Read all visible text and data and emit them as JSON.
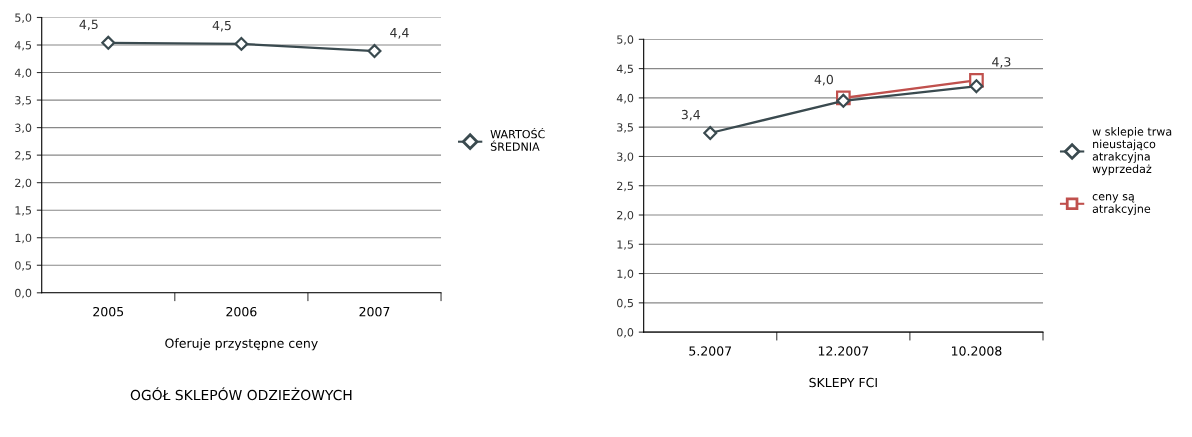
{
  "chart_data": [
    {
      "type": "line",
      "title": "OGÓŁ SKLEPÓW ODZIEŻOWYCH",
      "xlabel": "Oferuje przystępne ceny",
      "categories": [
        "2005",
        "2006",
        "2007"
      ],
      "series": [
        {
          "name": "WARTOŚĆ ŚREDNIA",
          "color": "#3a4a4f",
          "values": [
            4.54,
            4.52,
            4.39
          ],
          "value_labels": [
            "4,5",
            "4,5",
            "4,4"
          ]
        }
      ],
      "ylim": [
        0,
        5
      ],
      "yticks": [
        {
          "value": 0,
          "label": "0,0"
        },
        {
          "value": 0.5,
          "label": "0,5"
        },
        {
          "value": 1,
          "label": "1,0"
        },
        {
          "value": 1.5,
          "label": "1,5"
        },
        {
          "value": 2,
          "label": "2,0"
        },
        {
          "value": 2.5,
          "label": "2,5"
        },
        {
          "value": 3,
          "label": "3,0"
        },
        {
          "value": 3.5,
          "label": "3,5"
        },
        {
          "value": 4,
          "label": "4,0"
        },
        {
          "value": 4.5,
          "label": "4,5"
        },
        {
          "value": 5,
          "label": "5,0"
        }
      ],
      "grid": "y",
      "legend": "right",
      "marker": "diamond"
    },
    {
      "type": "line",
      "xlabel": "SKLEPY FCI",
      "categories": [
        "5.2007",
        "12.2007",
        "10.2008"
      ],
      "series": [
        {
          "name": "w sklepie trwa nieustająco atrakcyjna wyprzedaż",
          "color": "#3a4a4f",
          "values": [
            3.4,
            3.95,
            4.2
          ],
          "value_labels": [
            "3,4",
            null,
            null
          ],
          "marker": "diamond"
        },
        {
          "name": "ceny są atrakcyjne",
          "color": "#c0504d",
          "values": [
            null,
            4.0,
            4.3
          ],
          "value_labels": [
            null,
            "4,0",
            "4,3"
          ],
          "marker": "square"
        }
      ],
      "ylim": [
        0,
        5
      ],
      "yticks": [
        {
          "value": 0,
          "label": "0,0"
        },
        {
          "value": 0.5,
          "label": "0,5"
        },
        {
          "value": 1,
          "label": "1,0"
        },
        {
          "value": 1.5,
          "label": "1,5"
        },
        {
          "value": 2,
          "label": "2,0"
        },
        {
          "value": 2.5,
          "label": "2,5"
        },
        {
          "value": 3,
          "label": "3,0"
        },
        {
          "value": 3.5,
          "label": "3,5"
        },
        {
          "value": 4,
          "label": "4,0"
        },
        {
          "value": 4.5,
          "label": "4,5"
        },
        {
          "value": 5,
          "label": "5,0"
        }
      ],
      "grid": "y",
      "legend": "right"
    }
  ]
}
